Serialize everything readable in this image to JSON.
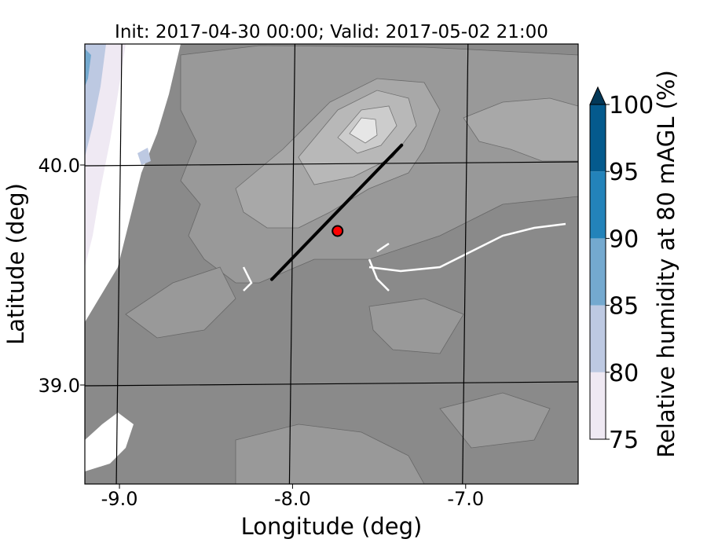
{
  "chart_data": {
    "type": "heatmap",
    "title": "Init: 2017-04-30 00:00; Valid: 2017-05-02 21:00",
    "xlabel": "Longitude (deg)",
    "ylabel": "Latitude (deg)",
    "xlim": [
      -9.2,
      -6.35
    ],
    "ylim": [
      38.55,
      40.55
    ],
    "xticks": [
      -9.0,
      -8.0,
      -7.0
    ],
    "xtick_labels": [
      "-9.0",
      "-8.0",
      "-7.0"
    ],
    "yticks": [
      39.0,
      40.0
    ],
    "ytick_labels": [
      "39.0",
      "40.0"
    ],
    "meridians": [
      -9.0,
      -8.0,
      -7.0
    ],
    "parallels": [
      39.0,
      40.0
    ],
    "cross_section_line": {
      "start": [
        -8.12,
        39.48
      ],
      "end": [
        -7.37,
        40.09
      ],
      "color": "#000000"
    },
    "marker": {
      "lon": -7.74,
      "lat": 39.7,
      "color": "#ff0000",
      "edge_color": "#000000"
    },
    "colorbar": {
      "label": "Relative humidity at 80 mAGL (%)",
      "levels": [
        75,
        80,
        85,
        90,
        95,
        100
      ],
      "tick_labels": [
        "75",
        "80",
        "85",
        "90",
        "95",
        "100"
      ],
      "colors": [
        "#efe9f3",
        "#bdc9e2",
        "#74a9cf",
        "#2383ba",
        "#045a8d"
      ],
      "extend": "max",
      "extend_color": "#023858"
    },
    "terrain_shades": [
      "#8a8a8a",
      "#999999",
      "#a8a8a8",
      "#b8b8b8",
      "#cccccc",
      "#e6e6e6"
    ]
  }
}
